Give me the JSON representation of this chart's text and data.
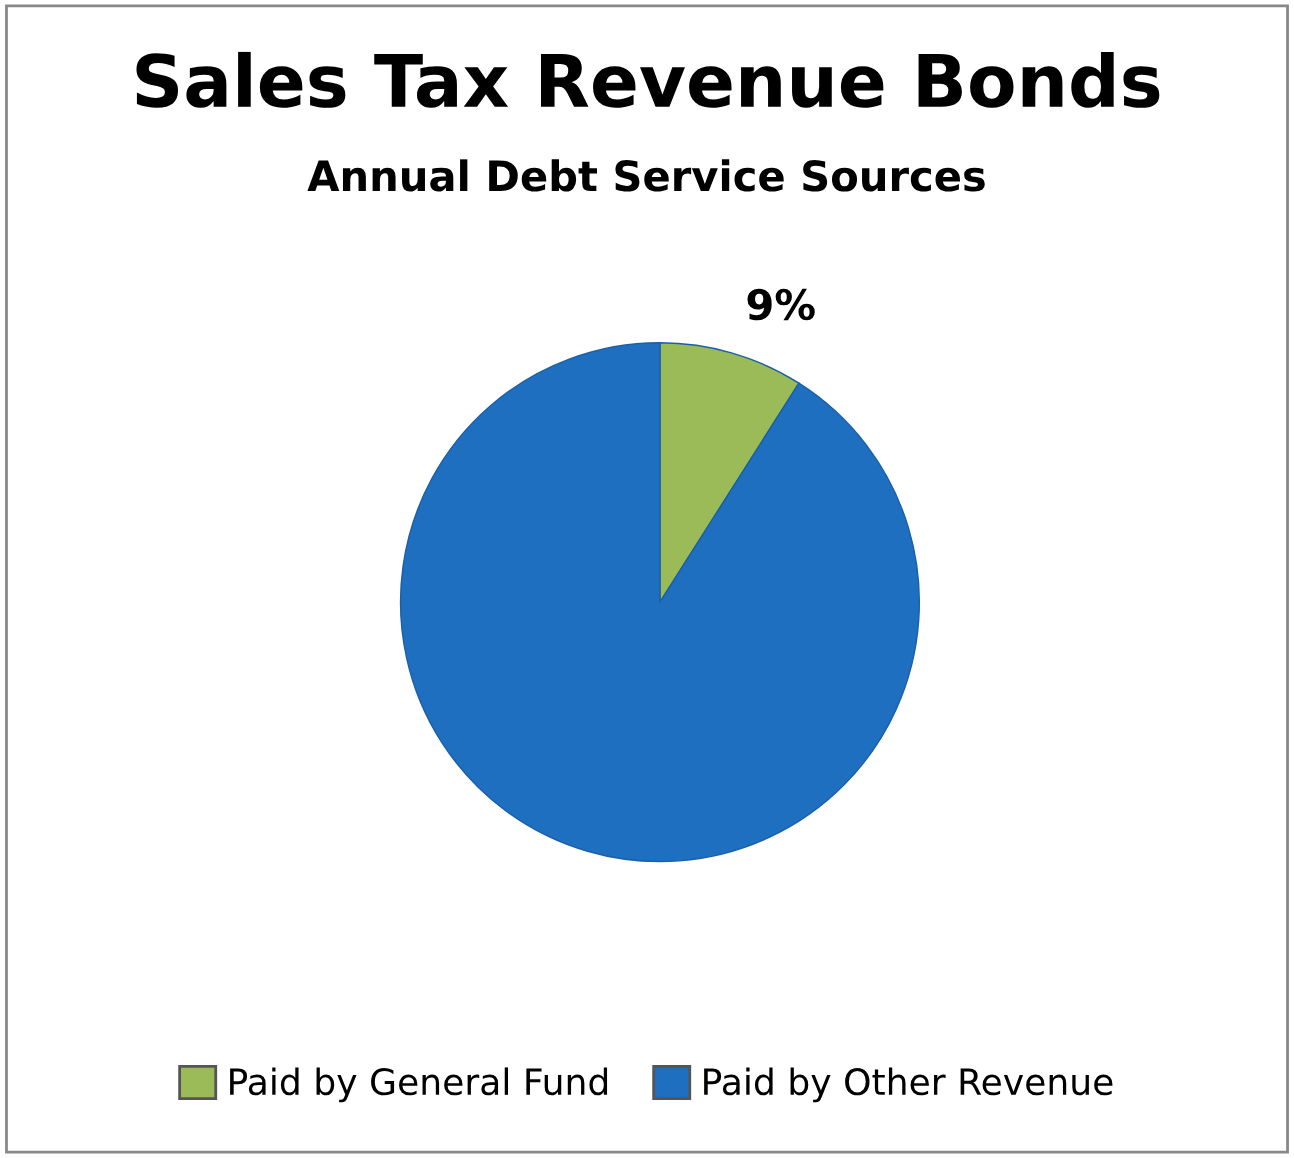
{
  "chart_data": {
    "type": "pie",
    "title": "Sales Tax Revenue Bonds",
    "subtitle": "Annual Debt Service Sources",
    "categories": [
      "Paid by General Fund",
      "Paid by Other Revenue"
    ],
    "values": [
      9,
      91
    ],
    "colors": [
      "#9bbb59",
      "#1f6fc0"
    ],
    "value_labels": [
      "9%",
      null
    ],
    "legend": "bottom"
  }
}
